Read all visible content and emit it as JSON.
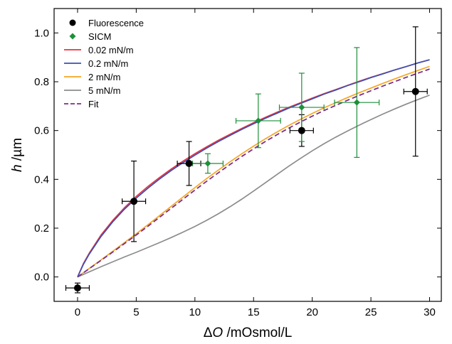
{
  "chart_data": {
    "type": "scatter",
    "xlabel": {
      "symbol_prefix": "Δ",
      "symbol": "O",
      "unit": " /mOsmol/L"
    },
    "ylabel": {
      "symbol": "h",
      "unit": " /µm"
    },
    "xlim": [
      -2,
      31
    ],
    "ylim": [
      -0.1,
      1.1
    ],
    "x_ticks": [
      0,
      5,
      10,
      15,
      20,
      25,
      30
    ],
    "x_tick_labels": [
      "0",
      "5",
      "10",
      "15",
      "20",
      "25",
      "30"
    ],
    "y_ticks": [
      0.0,
      0.2,
      0.4,
      0.6,
      0.8,
      1.0
    ],
    "y_tick_labels": [
      "0.0",
      "0.2",
      "0.4",
      "0.6",
      "0.8",
      "1.0"
    ],
    "grid": false,
    "legend_position": "top-left",
    "colors": {
      "fluorescence": "#000000",
      "sicm": "#1e8f3a",
      "c002": "#e8333f",
      "c02": "#3c4fb0",
      "c2": "#f5a623",
      "c5": "#8c8c8c",
      "fit": "#7b2f8a"
    },
    "legend": [
      {
        "label": "Fluorescence",
        "kind": "marker",
        "marker": "circle",
        "color_key": "fluorescence"
      },
      {
        "label": "SICM",
        "kind": "marker",
        "marker": "diamond",
        "color_key": "sicm"
      },
      {
        "label": "0.02 mN/m",
        "kind": "line",
        "color_key": "c002"
      },
      {
        "label": "0.2 mN/m",
        "kind": "line",
        "color_key": "c02"
      },
      {
        "label": "2 mN/m",
        "kind": "line",
        "color_key": "c2"
      },
      {
        "label": "5 mN/m",
        "kind": "line",
        "color_key": "c5"
      },
      {
        "label": "Fit",
        "kind": "dashed",
        "color_key": "fit"
      }
    ],
    "scatter_series": [
      {
        "name": "Fluorescence",
        "marker": "circle",
        "color_key": "fluorescence",
        "points": [
          {
            "x": 0.0,
            "y": -0.045,
            "xerr": 1.0,
            "yerr": 0.02
          },
          {
            "x": 4.8,
            "y": 0.31,
            "xerr": 1.0,
            "yerr": 0.165
          },
          {
            "x": 9.5,
            "y": 0.465,
            "xerr": 1.0,
            "yerr": 0.09
          },
          {
            "x": 19.1,
            "y": 0.6,
            "xerr": 1.0,
            "yerr": 0.065
          },
          {
            "x": 28.8,
            "y": 0.76,
            "xerr": 1.0,
            "yerr": 0.265
          }
        ]
      },
      {
        "name": "SICM",
        "marker": "diamond",
        "color_key": "sicm",
        "points": [
          {
            "x": 11.1,
            "y": 0.465,
            "xerr": 1.3,
            "yerr": 0.04
          },
          {
            "x": 15.4,
            "y": 0.64,
            "xerr": 1.9,
            "yerr": 0.11
          },
          {
            "x": 19.1,
            "y": 0.695,
            "xerr": 1.9,
            "yerr": 0.14
          },
          {
            "x": 23.8,
            "y": 0.715,
            "xerr": 1.9,
            "yerr": 0.225
          }
        ]
      }
    ],
    "line_series": [
      {
        "name": "0.02 mN/m",
        "color_key": "c002",
        "dashed": false,
        "x": [
          0,
          0.5,
          1,
          2,
          3,
          4,
          5,
          6,
          7,
          8,
          9,
          10,
          11,
          12,
          13,
          14,
          15,
          16,
          17,
          18,
          19,
          20,
          21,
          22,
          23,
          24,
          25,
          26,
          27,
          28,
          29,
          30
        ],
        "y": [
          0,
          0.055,
          0.098,
          0.172,
          0.232,
          0.284,
          0.33,
          0.371,
          0.408,
          0.443,
          0.475,
          0.505,
          0.533,
          0.56,
          0.585,
          0.609,
          0.632,
          0.654,
          0.675,
          0.695,
          0.714,
          0.733,
          0.751,
          0.768,
          0.785,
          0.802,
          0.818,
          0.833,
          0.848,
          0.862,
          0.877,
          0.89
        ]
      },
      {
        "name": "0.2 mN/m",
        "color_key": "c02",
        "dashed": false,
        "x": [
          0,
          0.5,
          1,
          2,
          3,
          4,
          5,
          6,
          7,
          8,
          9,
          10,
          11,
          12,
          13,
          14,
          15,
          16,
          17,
          18,
          19,
          20,
          21,
          22,
          23,
          24,
          25,
          26,
          27,
          28,
          29,
          30
        ],
        "y": [
          0,
          0.052,
          0.094,
          0.166,
          0.226,
          0.278,
          0.323,
          0.364,
          0.402,
          0.437,
          0.469,
          0.499,
          0.528,
          0.555,
          0.58,
          0.605,
          0.628,
          0.65,
          0.671,
          0.692,
          0.711,
          0.73,
          0.749,
          0.766,
          0.784,
          0.8,
          0.817,
          0.832,
          0.848,
          0.862,
          0.877,
          0.89
        ]
      },
      {
        "name": "2 mN/m",
        "color_key": "c2",
        "dashed": false,
        "x": [
          0,
          1,
          2,
          3,
          4,
          5,
          6,
          7,
          8,
          9,
          10,
          11,
          12,
          13,
          14,
          15,
          16,
          17,
          18,
          19,
          20,
          21,
          22,
          23,
          24,
          25,
          26,
          27,
          28,
          29,
          30
        ],
        "y": [
          0,
          0.035,
          0.07,
          0.105,
          0.141,
          0.177,
          0.214,
          0.252,
          0.29,
          0.328,
          0.366,
          0.403,
          0.438,
          0.472,
          0.505,
          0.536,
          0.566,
          0.594,
          0.621,
          0.646,
          0.67,
          0.693,
          0.714,
          0.735,
          0.755,
          0.774,
          0.793,
          0.811,
          0.829,
          0.846,
          0.863
        ]
      },
      {
        "name": "5 mN/m",
        "color_key": "c5",
        "dashed": false,
        "x": [
          0,
          1,
          2,
          3,
          4,
          5,
          6,
          7,
          8,
          9,
          10,
          11,
          12,
          13,
          14,
          15,
          16,
          17,
          18,
          19,
          20,
          21,
          22,
          23,
          24,
          25,
          26,
          27,
          28,
          29,
          30
        ],
        "y": [
          0,
          0.021,
          0.042,
          0.062,
          0.082,
          0.101,
          0.121,
          0.141,
          0.162,
          0.184,
          0.207,
          0.232,
          0.259,
          0.288,
          0.319,
          0.352,
          0.386,
          0.42,
          0.454,
          0.486,
          0.517,
          0.546,
          0.573,
          0.598,
          0.622,
          0.645,
          0.667,
          0.688,
          0.708,
          0.727,
          0.745
        ]
      },
      {
        "name": "Fit",
        "color_key": "fit",
        "dashed": true,
        "x": [
          0,
          1,
          2,
          3,
          4,
          5,
          6,
          7,
          8,
          9,
          10,
          11,
          12,
          13,
          14,
          15,
          16,
          17,
          18,
          19,
          20,
          21,
          22,
          23,
          24,
          25,
          26,
          27,
          28,
          29,
          30
        ],
        "y": [
          0,
          0.034,
          0.068,
          0.102,
          0.137,
          0.172,
          0.208,
          0.245,
          0.282,
          0.319,
          0.356,
          0.392,
          0.427,
          0.461,
          0.494,
          0.525,
          0.555,
          0.583,
          0.61,
          0.635,
          0.659,
          0.682,
          0.703,
          0.724,
          0.744,
          0.763,
          0.782,
          0.8,
          0.818,
          0.835,
          0.852
        ]
      }
    ]
  }
}
